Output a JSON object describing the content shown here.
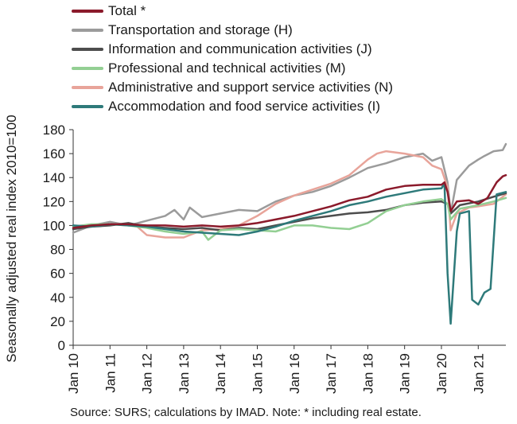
{
  "chart_data": {
    "type": "line",
    "ylabel": "Seasonally adjusted real index 2010=100",
    "ylim": [
      0,
      180
    ],
    "yticks": [
      0,
      20,
      40,
      60,
      80,
      100,
      120,
      140,
      160,
      180
    ],
    "xlim": [
      "2010-01",
      "2021-10"
    ],
    "xticks": [
      "Jan 10",
      "Jan 11",
      "Jan 12",
      "Jan 13",
      "Jan 14",
      "Jan 15",
      "Jan 16",
      "Jan 17",
      "Jan 18",
      "Jan 19",
      "Jan 20",
      "Jan 21"
    ],
    "grid": false,
    "legend_position": "top-left",
    "note": "Source:  SURS; calculations by IMAD. Note: * including real estate.",
    "series": [
      {
        "name": "Transportation and storage (H)",
        "color": "#9b9b9b",
        "points": [
          [
            "2010-01",
            94
          ],
          [
            "2010-07",
            100
          ],
          [
            "2011-01",
            103
          ],
          [
            "2011-07",
            100
          ],
          [
            "2012-01",
            104
          ],
          [
            "2012-07",
            108
          ],
          [
            "2012-10",
            113
          ],
          [
            "2013-01",
            105
          ],
          [
            "2013-03",
            115
          ],
          [
            "2013-07",
            107
          ],
          [
            "2014-01",
            110
          ],
          [
            "2014-07",
            113
          ],
          [
            "2015-01",
            112
          ],
          [
            "2015-07",
            120
          ],
          [
            "2016-01",
            125
          ],
          [
            "2016-07",
            128
          ],
          [
            "2017-01",
            133
          ],
          [
            "2017-07",
            140
          ],
          [
            "2018-01",
            148
          ],
          [
            "2018-07",
            152
          ],
          [
            "2019-01",
            157
          ],
          [
            "2019-07",
            160
          ],
          [
            "2019-10",
            154
          ],
          [
            "2020-01",
            157
          ],
          [
            "2020-03",
            136
          ],
          [
            "2020-04",
            110
          ],
          [
            "2020-06",
            138
          ],
          [
            "2020-10",
            150
          ],
          [
            "2021-01",
            155
          ],
          [
            "2021-03",
            158
          ],
          [
            "2021-06",
            162
          ],
          [
            "2021-09",
            163
          ],
          [
            "2021-10",
            168
          ]
        ]
      },
      {
        "name": "Administrative and support service activities (N)",
        "color": "#e8a49a",
        "points": [
          [
            "2011-09",
            101
          ],
          [
            "2012-01",
            92
          ],
          [
            "2012-07",
            90
          ],
          [
            "2013-01",
            90
          ],
          [
            "2013-07",
            96
          ],
          [
            "2014-01",
            97
          ],
          [
            "2014-07",
            100
          ],
          [
            "2015-01",
            108
          ],
          [
            "2015-07",
            118
          ],
          [
            "2016-01",
            125
          ],
          [
            "2016-07",
            130
          ],
          [
            "2017-01",
            135
          ],
          [
            "2017-07",
            142
          ],
          [
            "2018-01",
            155
          ],
          [
            "2018-04",
            160
          ],
          [
            "2018-07",
            162
          ],
          [
            "2019-01",
            160
          ],
          [
            "2019-07",
            157
          ],
          [
            "2019-10",
            150
          ],
          [
            "2020-01",
            147
          ],
          [
            "2020-03",
            132
          ],
          [
            "2020-04",
            96
          ],
          [
            "2020-06",
            110
          ],
          [
            "2020-10",
            115
          ],
          [
            "2021-01",
            116
          ],
          [
            "2021-06",
            118
          ],
          [
            "2021-09",
            124
          ],
          [
            "2021-10",
            126
          ]
        ]
      },
      {
        "name": "Information and communication activities (J)",
        "color": "#4d4d4d",
        "points": [
          [
            "2010-01",
            97
          ],
          [
            "2010-07",
            99
          ],
          [
            "2011-01",
            100
          ],
          [
            "2011-07",
            102
          ],
          [
            "2012-01",
            99
          ],
          [
            "2012-07",
            98
          ],
          [
            "2013-01",
            97
          ],
          [
            "2013-07",
            98
          ],
          [
            "2014-01",
            96
          ],
          [
            "2014-07",
            98
          ],
          [
            "2015-01",
            97
          ],
          [
            "2015-07",
            100
          ],
          [
            "2016-01",
            103
          ],
          [
            "2016-07",
            106
          ],
          [
            "2017-01",
            108
          ],
          [
            "2017-07",
            110
          ],
          [
            "2018-01",
            111
          ],
          [
            "2018-07",
            113
          ],
          [
            "2019-01",
            117
          ],
          [
            "2019-07",
            119
          ],
          [
            "2020-01",
            120
          ],
          [
            "2020-03",
            118
          ],
          [
            "2020-04",
            110
          ],
          [
            "2020-07",
            117
          ],
          [
            "2021-01",
            120
          ],
          [
            "2021-06",
            124
          ],
          [
            "2021-10",
            127
          ]
        ]
      },
      {
        "name": "Professional and technical activities (M)",
        "color": "#93cf93",
        "points": [
          [
            "2010-01",
            99
          ],
          [
            "2010-07",
            101
          ],
          [
            "2011-01",
            101
          ],
          [
            "2011-07",
            100
          ],
          [
            "2012-01",
            98
          ],
          [
            "2012-07",
            95
          ],
          [
            "2013-01",
            93
          ],
          [
            "2013-07",
            95
          ],
          [
            "2013-09",
            88
          ],
          [
            "2014-01",
            96
          ],
          [
            "2014-07",
            97
          ],
          [
            "2015-01",
            96
          ],
          [
            "2015-07",
            95
          ],
          [
            "2016-01",
            100
          ],
          [
            "2016-07",
            100
          ],
          [
            "2017-01",
            98
          ],
          [
            "2017-07",
            97
          ],
          [
            "2018-01",
            102
          ],
          [
            "2018-07",
            112
          ],
          [
            "2019-01",
            117
          ],
          [
            "2019-07",
            120
          ],
          [
            "2020-01",
            122
          ],
          [
            "2020-03",
            118
          ],
          [
            "2020-04",
            105
          ],
          [
            "2020-07",
            114
          ],
          [
            "2021-01",
            117
          ],
          [
            "2021-06",
            120
          ],
          [
            "2021-10",
            123
          ]
        ]
      },
      {
        "name": "Accommodation and food service activities (I)",
        "color": "#2e7a7a",
        "points": [
          [
            "2010-01",
            100
          ],
          [
            "2010-07",
            99
          ],
          [
            "2011-01",
            101
          ],
          [
            "2011-07",
            100
          ],
          [
            "2012-01",
            99
          ],
          [
            "2012-07",
            97
          ],
          [
            "2013-01",
            95
          ],
          [
            "2013-07",
            94
          ],
          [
            "2014-01",
            93
          ],
          [
            "2014-07",
            92
          ],
          [
            "2015-01",
            95
          ],
          [
            "2015-07",
            99
          ],
          [
            "2016-01",
            104
          ],
          [
            "2016-07",
            108
          ],
          [
            "2017-01",
            112
          ],
          [
            "2017-07",
            117
          ],
          [
            "2018-01",
            120
          ],
          [
            "2018-07",
            124
          ],
          [
            "2019-01",
            127
          ],
          [
            "2019-07",
            130
          ],
          [
            "2020-01",
            131
          ],
          [
            "2020-02",
            135
          ],
          [
            "2020-03",
            60
          ],
          [
            "2020-04",
            18
          ],
          [
            "2020-06",
            95
          ],
          [
            "2020-07",
            110
          ],
          [
            "2020-10",
            112
          ],
          [
            "2020-11",
            38
          ],
          [
            "2021-01",
            34
          ],
          [
            "2021-03",
            44
          ],
          [
            "2021-05",
            47
          ],
          [
            "2021-07",
            126
          ],
          [
            "2021-10",
            128
          ]
        ]
      },
      {
        "name": "Total *",
        "color": "#8b1a2b",
        "points": [
          [
            "2010-01",
            98
          ],
          [
            "2010-07",
            100
          ],
          [
            "2011-01",
            101
          ],
          [
            "2011-07",
            101
          ],
          [
            "2012-01",
            100
          ],
          [
            "2012-07",
            100
          ],
          [
            "2013-01",
            99
          ],
          [
            "2013-07",
            100
          ],
          [
            "2014-01",
            99
          ],
          [
            "2014-07",
            100
          ],
          [
            "2015-01",
            102
          ],
          [
            "2015-07",
            105
          ],
          [
            "2016-01",
            108
          ],
          [
            "2016-07",
            112
          ],
          [
            "2017-01",
            116
          ],
          [
            "2017-07",
            121
          ],
          [
            "2018-01",
            124
          ],
          [
            "2018-07",
            130
          ],
          [
            "2019-01",
            133
          ],
          [
            "2019-07",
            134
          ],
          [
            "2020-01",
            134
          ],
          [
            "2020-02",
            136
          ],
          [
            "2020-03",
            128
          ],
          [
            "2020-04",
            112
          ],
          [
            "2020-06",
            120
          ],
          [
            "2020-10",
            121
          ],
          [
            "2021-01",
            118
          ],
          [
            "2021-04",
            123
          ],
          [
            "2021-07",
            136
          ],
          [
            "2021-09",
            141
          ],
          [
            "2021-10",
            142
          ]
        ]
      }
    ]
  },
  "legend": [
    {
      "label": "Total *",
      "color": "#8b1a2b"
    },
    {
      "label": "Transportation and storage (H)",
      "color": "#9b9b9b"
    },
    {
      "label": "Information and communication activities (J)",
      "color": "#4d4d4d"
    },
    {
      "label": "Professional and technical activities (M)",
      "color": "#93cf93"
    },
    {
      "label": "Administrative and support service activities (N)",
      "color": "#e8a49a"
    },
    {
      "label": "Accommodation and food service activities (I)",
      "color": "#2e7a7a"
    }
  ]
}
